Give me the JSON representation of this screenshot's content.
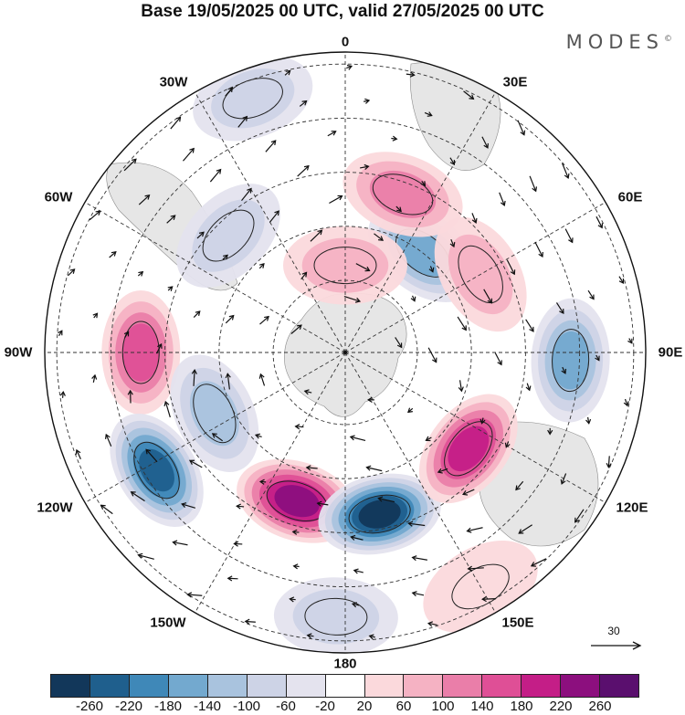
{
  "title": "Base 19/05/2025 00 UTC, valid 27/05/2025 00 UTC",
  "brand": "MODES",
  "brand_mark": "©",
  "longitude_labels": {
    "lon_0": "0",
    "lon_30e": "30E",
    "lon_60e": "60E",
    "lon_90e": "90E",
    "lon_120e": "120E",
    "lon_150e": "150E",
    "lon_180": "180",
    "lon_150w": "150W",
    "lon_120w": "120W",
    "lon_90w": "90W",
    "lon_60w": "60W",
    "lon_30w": "30W"
  },
  "reference_vector": {
    "label": "30"
  },
  "colorbar": {
    "colors": [
      "#12375a",
      "#1f5f8d",
      "#3f88b8",
      "#73a9cf",
      "#a9c3de",
      "#cdd3e6",
      "#e4e3ee",
      "#ffffff",
      "#fbd9dc",
      "#f5b2c3",
      "#ea7ea9",
      "#df4f96",
      "#c41e87",
      "#8c0f7e",
      "#5a0f6e"
    ],
    "tick_labels": [
      "-260",
      "-220",
      "-180",
      "-140",
      "-100",
      "-60",
      "-20",
      "20",
      "60",
      "100",
      "140",
      "180",
      "220",
      "260"
    ]
  },
  "anomalies": [
    {
      "name": "pos-90w",
      "lon": -90,
      "r": 0.68,
      "value": 170
    },
    {
      "name": "pos-160w",
      "lon": -162,
      "r": 0.52,
      "value": 230
    },
    {
      "name": "neg-120w",
      "lon": -122,
      "r": 0.74,
      "value": -230
    },
    {
      "name": "neg-110w",
      "lon": -115,
      "r": 0.48,
      "value": -120
    },
    {
      "name": "neg-170e",
      "lon": 168,
      "r": 0.55,
      "value": -260
    },
    {
      "name": "pos-130e",
      "lon": 128,
      "r": 0.52,
      "value": 190
    },
    {
      "name": "neg-90e",
      "lon": 92,
      "r": 0.75,
      "value": -170
    },
    {
      "name": "neg-40e",
      "lon": 38,
      "r": 0.42,
      "value": -160
    },
    {
      "name": "pos-20e",
      "lon": 20,
      "r": 0.56,
      "value": 120
    },
    {
      "name": "pos-60e",
      "lon": 60,
      "r": 0.52,
      "value": 60
    },
    {
      "name": "neg-20w",
      "lon": -20,
      "r": 0.9,
      "value": -80
    },
    {
      "name": "neg-40w",
      "lon": -45,
      "r": 0.55,
      "value": -70
    },
    {
      "name": "pos-0",
      "lon": 0,
      "r": 0.29,
      "value": 70
    },
    {
      "name": "pos-150e",
      "lon": 150,
      "r": 0.9,
      "value": 20
    },
    {
      "name": "neg-175w",
      "lon": -178,
      "r": 0.88,
      "value": -60
    }
  ]
}
